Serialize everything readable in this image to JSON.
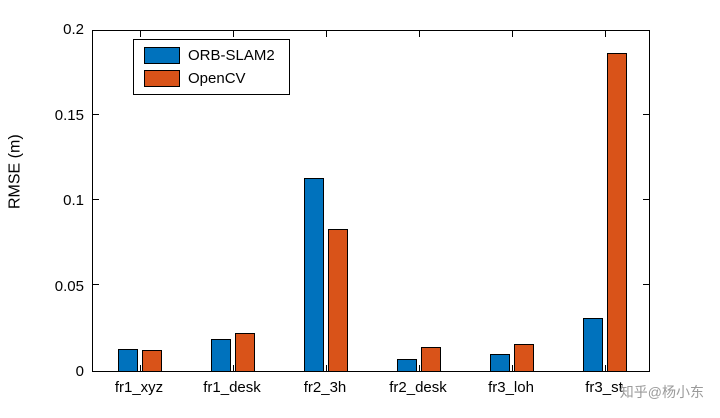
{
  "chart_data": {
    "type": "bar",
    "title": "",
    "xlabel": "",
    "ylabel": "RMSE (m)",
    "ylim": [
      0,
      0.2
    ],
    "yticks": [
      0,
      0.05,
      0.1,
      0.15,
      0.2
    ],
    "ytick_labels": [
      "0",
      "0.05",
      "0.1",
      "0.15",
      "0.2"
    ],
    "categories": [
      "fr1_xyz",
      "fr1_desk",
      "fr2_3h",
      "fr2_desk",
      "fr3_loh",
      "fr3_st"
    ],
    "series": [
      {
        "name": "ORB-SLAM2",
        "color": "#0072BD",
        "values": [
          0.013,
          0.019,
          0.113,
          0.007,
          0.01,
          0.031
        ]
      },
      {
        "name": "OpenCV",
        "color": "#D95319",
        "values": [
          0.012,
          0.022,
          0.083,
          0.014,
          0.016,
          0.186
        ]
      }
    ],
    "legend_position": "top-left",
    "grid": false
  },
  "watermark": "知乎@杨小东"
}
